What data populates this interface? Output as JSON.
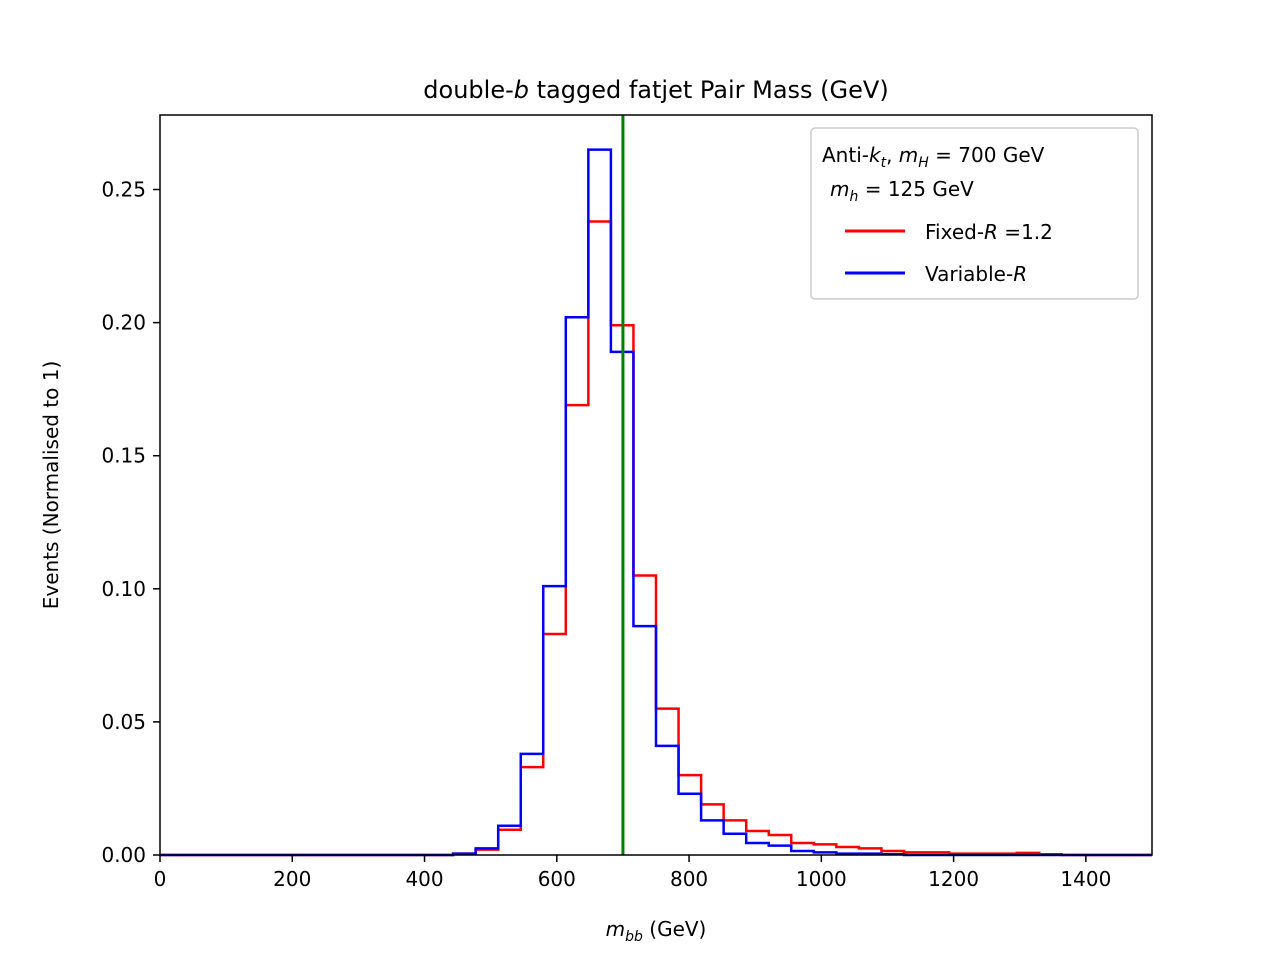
{
  "chart_data": {
    "type": "histogram-step",
    "title": {
      "prefix": "double-",
      "italic": "b",
      "suffix": " tagged fatjet Pair Mass (GeV)"
    },
    "xlabel": {
      "italic_base": "m",
      "italic_sub": "bb",
      "suffix": " (GeV)"
    },
    "ylabel": "Events (Normalised to 1)",
    "xlim": [
      0,
      1500
    ],
    "ylim": [
      0,
      0.278
    ],
    "xticks": [
      0,
      200,
      400,
      600,
      800,
      1000,
      1200,
      1400
    ],
    "xtick_labels": [
      "0",
      "200",
      "400",
      "600",
      "800",
      "1000",
      "1200",
      "1400"
    ],
    "yticks": [
      0.0,
      0.05,
      0.1,
      0.15,
      0.2,
      0.25
    ],
    "ytick_labels": [
      "0.00",
      "0.05",
      "0.10",
      "0.15",
      "0.20",
      "0.25"
    ],
    "bin_edges": [
      0,
      34.1,
      68.2,
      102.3,
      136.4,
      170.5,
      204.5,
      238.6,
      272.7,
      306.8,
      340.9,
      375.0,
      409.1,
      443.2,
      477.3,
      511.4,
      545.5,
      579.5,
      613.6,
      647.7,
      681.8,
      715.9,
      750.0,
      784.1,
      818.2,
      852.3,
      886.4,
      920.5,
      954.5,
      988.6,
      1022.7,
      1056.8,
      1090.9,
      1125.0,
      1159.1,
      1193.2,
      1227.3,
      1261.4,
      1295.5,
      1329.5,
      1363.6,
      1397.7,
      1431.8,
      1465.9,
      1500
    ],
    "series": [
      {
        "name": "Fixed-R =1.2",
        "name_parts": {
          "prefix": "Fixed-",
          "italic": "R",
          "suffix": " =1.2"
        },
        "color": "#ff0000",
        "values": [
          0,
          0,
          0,
          0,
          0,
          0,
          0,
          0,
          0,
          0,
          0,
          0,
          0,
          0.0005,
          0.002,
          0.0095,
          0.033,
          0.083,
          0.169,
          0.238,
          0.199,
          0.105,
          0.055,
          0.03,
          0.019,
          0.013,
          0.009,
          0.0075,
          0.0045,
          0.004,
          0.003,
          0.0025,
          0.0015,
          0.001,
          0.001,
          0.0005,
          0.0005,
          0.0005,
          0.0008,
          0.0003,
          0,
          0,
          0,
          0
        ]
      },
      {
        "name": "Variable-R",
        "name_parts": {
          "prefix": "Variable-",
          "italic": "R",
          "suffix": ""
        },
        "color": "#0000ff",
        "values": [
          0,
          0,
          0,
          0,
          0,
          0,
          0,
          0,
          0,
          0,
          0,
          0,
          0,
          0.0005,
          0.0025,
          0.011,
          0.038,
          0.101,
          0.202,
          0.265,
          0.189,
          0.086,
          0.041,
          0.023,
          0.013,
          0.008,
          0.0045,
          0.0035,
          0.0015,
          0.001,
          0.0005,
          0.0005,
          0.0003,
          0,
          0,
          0,
          0,
          0,
          0,
          0,
          0,
          0,
          0,
          0
        ]
      }
    ],
    "vline": {
      "x": 700,
      "color": "#008000"
    },
    "legend": {
      "placement": "top-right",
      "header_line1": {
        "t1": "Anti-",
        "t1_italic": "k",
        "t1_sub": "t",
        "t2": ", ",
        "t2_italic": "m",
        "t2_sub": "H",
        "t3": " = 700 GeV"
      },
      "header_line2": {
        "italic": "m",
        "sub": "h",
        "suffix": " = 125 GeV"
      }
    }
  }
}
